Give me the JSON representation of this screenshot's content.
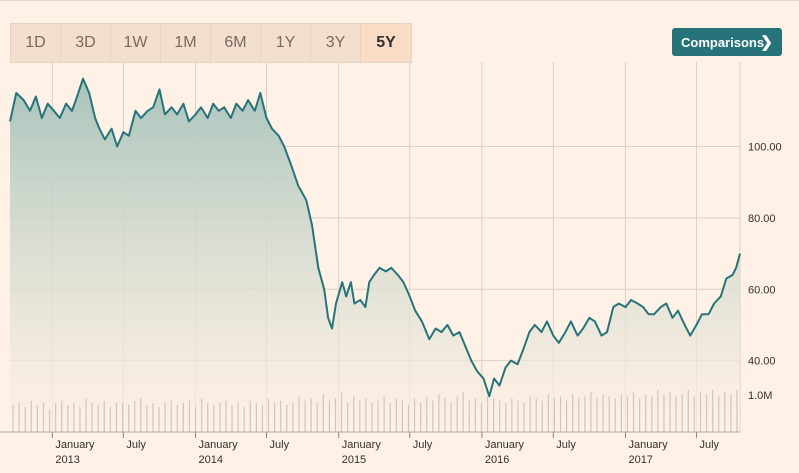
{
  "toolbar": {
    "ranges": [
      "1D",
      "3D",
      "1W",
      "1M",
      "6M",
      "1Y",
      "3Y",
      "5Y"
    ],
    "active_range": "5Y",
    "compare_label": "Comparisons",
    "compare_icon": "chevron-right-icon"
  },
  "colors": {
    "background": "#fff1e5",
    "line": "#26747a",
    "fill_top": "#a9c4bb",
    "volume": "#d3c5b8",
    "button": "#26747a"
  },
  "chart_data": {
    "type": "line",
    "title": "",
    "xlabel": "",
    "ylabel": "",
    "ylim": [
      20,
      122
    ],
    "yticks": [
      40,
      60,
      80,
      100
    ],
    "ytick_labels": [
      "40.00",
      "60.00",
      "80.00",
      "100.00"
    ],
    "volume_tick_label": "1.0M",
    "x_range": [
      "2012-09-15",
      "2017-10-20"
    ],
    "x_ticks": [
      {
        "date": "2013-01-01",
        "month": "January",
        "year": "2013"
      },
      {
        "date": "2013-07-01",
        "month": "July",
        "year": ""
      },
      {
        "date": "2014-01-01",
        "month": "January",
        "year": "2014"
      },
      {
        "date": "2014-07-01",
        "month": "July",
        "year": ""
      },
      {
        "date": "2015-01-01",
        "month": "January",
        "year": "2015"
      },
      {
        "date": "2015-07-01",
        "month": "July",
        "year": ""
      },
      {
        "date": "2016-01-01",
        "month": "January",
        "year": "2016"
      },
      {
        "date": "2016-07-01",
        "month": "July",
        "year": ""
      },
      {
        "date": "2017-01-01",
        "month": "January",
        "year": "2017"
      },
      {
        "date": "2017-07-01",
        "month": "July",
        "year": ""
      }
    ],
    "grid": true,
    "series": [
      {
        "points": [
          [
            "2012-09-15",
            107
          ],
          [
            "2012-10-01",
            115
          ],
          [
            "2012-10-20",
            113
          ],
          [
            "2012-11-05",
            110
          ],
          [
            "2012-11-20",
            114
          ],
          [
            "2012-12-05",
            108
          ],
          [
            "2012-12-20",
            112
          ],
          [
            "2013-01-05",
            110
          ],
          [
            "2013-01-20",
            108
          ],
          [
            "2013-02-05",
            112
          ],
          [
            "2013-02-20",
            110
          ],
          [
            "2013-03-05",
            114
          ],
          [
            "2013-03-20",
            119
          ],
          [
            "2013-04-05",
            115
          ],
          [
            "2013-04-20",
            108
          ],
          [
            "2013-05-01",
            105
          ],
          [
            "2013-05-15",
            102
          ],
          [
            "2013-06-01",
            105
          ],
          [
            "2013-06-15",
            100
          ],
          [
            "2013-07-01",
            104
          ],
          [
            "2013-07-15",
            103
          ],
          [
            "2013-08-01",
            110
          ],
          [
            "2013-08-15",
            108
          ],
          [
            "2013-09-01",
            110
          ],
          [
            "2013-09-15",
            111
          ],
          [
            "2013-10-01",
            116
          ],
          [
            "2013-10-15",
            109
          ],
          [
            "2013-11-01",
            111
          ],
          [
            "2013-11-15",
            109
          ],
          [
            "2013-12-01",
            112
          ],
          [
            "2013-12-15",
            107
          ],
          [
            "2014-01-01",
            109
          ],
          [
            "2014-01-15",
            111
          ],
          [
            "2014-02-01",
            108
          ],
          [
            "2014-02-15",
            112
          ],
          [
            "2014-03-01",
            110
          ],
          [
            "2014-03-15",
            111
          ],
          [
            "2014-04-01",
            108
          ],
          [
            "2014-04-15",
            112
          ],
          [
            "2014-05-01",
            110
          ],
          [
            "2014-05-15",
            113
          ],
          [
            "2014-06-01",
            110
          ],
          [
            "2014-06-15",
            115
          ],
          [
            "2014-07-01",
            108
          ],
          [
            "2014-07-15",
            105
          ],
          [
            "2014-08-01",
            103
          ],
          [
            "2014-08-15",
            100
          ],
          [
            "2014-09-01",
            95
          ],
          [
            "2014-09-20",
            89
          ],
          [
            "2014-10-10",
            85
          ],
          [
            "2014-10-25",
            78
          ],
          [
            "2014-11-10",
            66
          ],
          [
            "2014-11-25",
            60
          ],
          [
            "2014-12-05",
            52
          ],
          [
            "2014-12-15",
            49
          ],
          [
            "2014-12-25",
            56
          ],
          [
            "2015-01-10",
            62
          ],
          [
            "2015-01-20",
            58
          ],
          [
            "2015-02-01",
            62
          ],
          [
            "2015-02-10",
            56
          ],
          [
            "2015-02-25",
            57
          ],
          [
            "2015-03-10",
            55
          ],
          [
            "2015-03-20",
            62
          ],
          [
            "2015-04-01",
            64
          ],
          [
            "2015-04-15",
            66
          ],
          [
            "2015-05-01",
            65
          ],
          [
            "2015-05-15",
            66
          ],
          [
            "2015-06-01",
            64
          ],
          [
            "2015-06-15",
            62
          ],
          [
            "2015-07-01",
            58
          ],
          [
            "2015-07-15",
            54
          ],
          [
            "2015-08-01",
            51
          ],
          [
            "2015-08-20",
            46
          ],
          [
            "2015-09-05",
            49
          ],
          [
            "2015-09-20",
            48
          ],
          [
            "2015-10-05",
            50
          ],
          [
            "2015-10-20",
            47
          ],
          [
            "2015-11-05",
            48
          ],
          [
            "2015-11-20",
            44
          ],
          [
            "2015-12-05",
            40
          ],
          [
            "2015-12-20",
            37
          ],
          [
            "2016-01-05",
            35
          ],
          [
            "2016-01-20",
            30
          ],
          [
            "2016-02-01",
            35
          ],
          [
            "2016-02-15",
            33
          ],
          [
            "2016-03-01",
            38
          ],
          [
            "2016-03-15",
            40
          ],
          [
            "2016-04-01",
            39
          ],
          [
            "2016-04-15",
            43
          ],
          [
            "2016-05-01",
            48
          ],
          [
            "2016-05-15",
            50
          ],
          [
            "2016-06-01",
            48
          ],
          [
            "2016-06-15",
            51
          ],
          [
            "2016-07-01",
            47
          ],
          [
            "2016-07-15",
            45
          ],
          [
            "2016-08-01",
            48
          ],
          [
            "2016-08-15",
            51
          ],
          [
            "2016-09-01",
            47
          ],
          [
            "2016-09-15",
            49
          ],
          [
            "2016-10-01",
            52
          ],
          [
            "2016-10-15",
            51
          ],
          [
            "2016-11-01",
            47
          ],
          [
            "2016-11-15",
            48
          ],
          [
            "2016-12-01",
            55
          ],
          [
            "2016-12-15",
            56
          ],
          [
            "2017-01-01",
            55
          ],
          [
            "2017-01-15",
            57
          ],
          [
            "2017-02-01",
            56
          ],
          [
            "2017-02-15",
            55
          ],
          [
            "2017-03-01",
            53
          ],
          [
            "2017-03-15",
            53
          ],
          [
            "2017-04-01",
            55
          ],
          [
            "2017-04-15",
            56
          ],
          [
            "2017-05-01",
            52
          ],
          [
            "2017-05-15",
            54
          ],
          [
            "2017-06-01",
            50
          ],
          [
            "2017-06-15",
            47
          ],
          [
            "2017-07-01",
            50
          ],
          [
            "2017-07-15",
            53
          ],
          [
            "2017-08-01",
            53
          ],
          [
            "2017-08-15",
            56
          ],
          [
            "2017-09-01",
            58
          ],
          [
            "2017-09-15",
            63
          ],
          [
            "2017-10-01",
            64
          ],
          [
            "2017-10-10",
            66
          ],
          [
            "2017-10-20",
            70
          ]
        ]
      }
    ],
    "volume": [
      0.9,
      1.0,
      0.8,
      1.1,
      0.9,
      1.0,
      0.7,
      1.0,
      1.1,
      0.9,
      1.0,
      0.8,
      1.2,
      1.0,
      0.9,
      1.1,
      0.8,
      1.0,
      1.0,
      0.9,
      1.1,
      1.2,
      0.9,
      1.0,
      0.8,
      1.0,
      1.1,
      0.9,
      1.0,
      1.1,
      0.8,
      1.2,
      1.0,
      0.9,
      1.0,
      1.1,
      0.9,
      1.0,
      0.8,
      1.1,
      1.0,
      0.9,
      1.2,
      1.0,
      1.1,
      0.9,
      1.0,
      1.3,
      1.1,
      1.2,
      1.0,
      1.4,
      1.1,
      1.2,
      1.5,
      1.0,
      1.3,
      1.1,
      1.2,
      1.0,
      1.1,
      1.3,
      1.0,
      1.2,
      1.1,
      0.9,
      1.2,
      1.0,
      1.3,
      1.1,
      1.4,
      1.2,
      1.0,
      1.3,
      1.5,
      1.1,
      1.2,
      1.0,
      1.3,
      1.2,
      1.1,
      1.0,
      1.2,
      1.1,
      1.0,
      1.3,
      1.2,
      1.1,
      1.4,
      1.2,
      1.3,
      1.1,
      1.4,
      1.2,
      1.3,
      1.5,
      1.2,
      1.4,
      1.3,
      1.2,
      1.4,
      1.3,
      1.5,
      1.2,
      1.4,
      1.3,
      1.6,
      1.4,
      1.5,
      1.3,
      1.4,
      1.6,
      1.3,
      1.5,
      1.4,
      1.6,
      1.3,
      1.5,
      1.4,
      1.6
    ]
  }
}
